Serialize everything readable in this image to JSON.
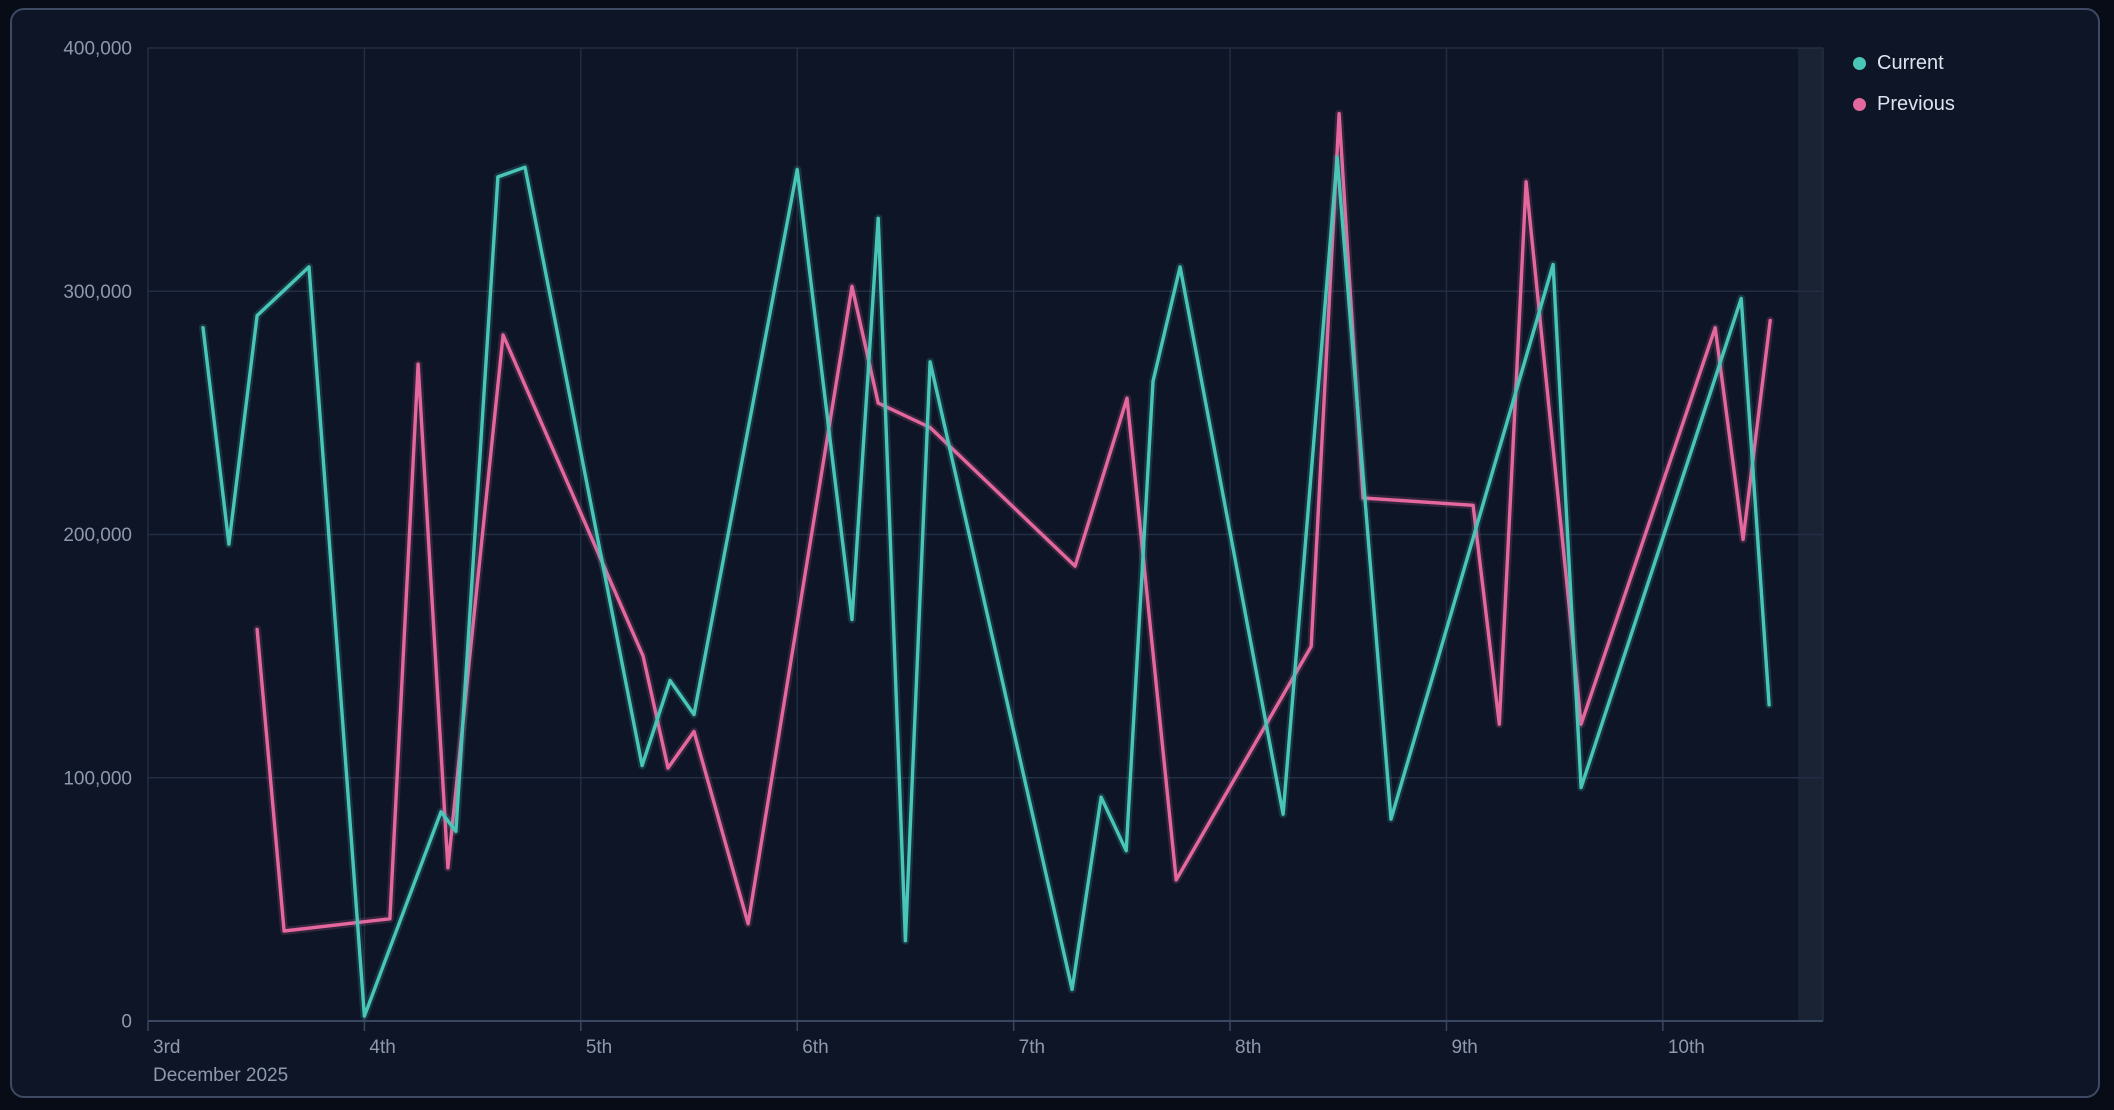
{
  "page": {
    "background": "#070c17"
  },
  "card": {
    "background": "#0d1526",
    "border_color": "#3e4a63"
  },
  "legend": {
    "position": "top-right",
    "items": [
      {
        "label": "Current",
        "color": "#49c6b8"
      },
      {
        "label": "Previous",
        "color": "#e4679e"
      }
    ]
  },
  "style": {
    "gridline_color": "#232e44",
    "axis_line_color": "#3a4761",
    "tick_label_color": "#8e99ae",
    "month_label_color": "#8e99ae",
    "band_color": "#1a2334",
    "tick_font_size": 19
  },
  "chart_data": {
    "type": "line",
    "title": "",
    "grid": true,
    "legend_position": "top-right",
    "x_axis": {
      "unit": "days (December 2025)",
      "month_label": "December 2025",
      "range_days": [
        0,
        7.74
      ],
      "ticks": [
        {
          "day": 0,
          "label": "3rd"
        },
        {
          "day": 1,
          "label": "4th"
        },
        {
          "day": 2,
          "label": "5th"
        },
        {
          "day": 3,
          "label": "6th"
        },
        {
          "day": 4,
          "label": "7th"
        },
        {
          "day": 5,
          "label": "8th"
        },
        {
          "day": 6,
          "label": "9th"
        },
        {
          "day": 7,
          "label": "10th"
        }
      ]
    },
    "y_axis": {
      "range": [
        0,
        400000
      ],
      "ticks": [
        {
          "value": 0,
          "label": "0"
        },
        {
          "value": 100000,
          "label": "100,000"
        },
        {
          "value": 200000,
          "label": "200,000"
        },
        {
          "value": 300000,
          "label": "300,000"
        },
        {
          "value": 400000,
          "label": "400,000"
        }
      ]
    },
    "highlight_band": {
      "from_day": 7.625,
      "to_day": 7.74
    },
    "series": [
      {
        "name": "Current",
        "color": "#49c6b8",
        "points": [
          [
            0.254,
            285000
          ],
          [
            0.374,
            196000
          ],
          [
            0.504,
            290000
          ],
          [
            0.744,
            310000
          ],
          [
            1.0,
            2000
          ],
          [
            1.354,
            86000
          ],
          [
            1.423,
            78000
          ],
          [
            1.617,
            347000
          ],
          [
            1.742,
            351000
          ],
          [
            2.283,
            105000
          ],
          [
            2.412,
            140000
          ],
          [
            2.523,
            126000
          ],
          [
            3.0,
            350000
          ],
          [
            3.253,
            165000
          ],
          [
            3.374,
            330000
          ],
          [
            3.5,
            33000
          ],
          [
            3.614,
            271000
          ],
          [
            4.27,
            13000
          ],
          [
            4.404,
            92000
          ],
          [
            4.52,
            70000
          ],
          [
            4.644,
            263000
          ],
          [
            4.769,
            310000
          ],
          [
            5.245,
            85000
          ],
          [
            5.495,
            355000
          ],
          [
            5.744,
            83000
          ],
          [
            6.493,
            311000
          ],
          [
            6.622,
            96000
          ],
          [
            7.362,
            297000
          ],
          [
            7.491,
            130000
          ]
        ]
      },
      {
        "name": "Previous",
        "color": "#e4679e",
        "points": [
          [
            0.504,
            161000
          ],
          [
            0.629,
            37000
          ],
          [
            1.118,
            42000
          ],
          [
            1.248,
            270000
          ],
          [
            1.386,
            63000
          ],
          [
            1.641,
            282000
          ],
          [
            2.288,
            150000
          ],
          [
            2.403,
            104000
          ],
          [
            2.523,
            119000
          ],
          [
            2.773,
            40000
          ],
          [
            3.253,
            302000
          ],
          [
            3.374,
            254000
          ],
          [
            3.614,
            244000
          ],
          [
            4.284,
            187000
          ],
          [
            4.524,
            256000
          ],
          [
            4.751,
            58000
          ],
          [
            5.375,
            154000
          ],
          [
            5.504,
            373000
          ],
          [
            5.615,
            215000
          ],
          [
            6.123,
            212000
          ],
          [
            6.244,
            122000
          ],
          [
            6.368,
            345000
          ],
          [
            6.622,
            122000
          ],
          [
            7.242,
            285000
          ],
          [
            7.371,
            198000
          ],
          [
            7.496,
            288000
          ]
        ]
      }
    ]
  }
}
